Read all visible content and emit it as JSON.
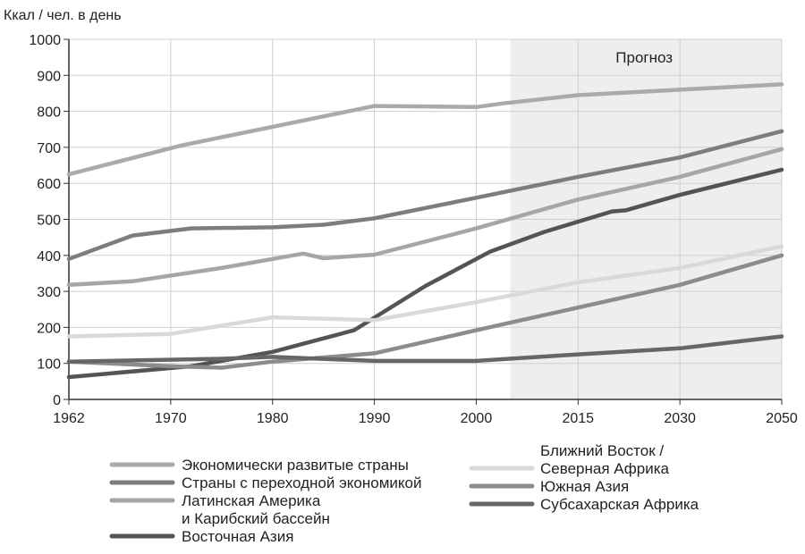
{
  "chart_data": {
    "type": "line",
    "ylabel": "Ккал / чел. в день",
    "ylim": [
      0,
      1000
    ],
    "yticks": [
      0,
      100,
      200,
      300,
      400,
      500,
      600,
      700,
      800,
      900,
      1000
    ],
    "xticks": [
      "1962",
      "1970",
      "1980",
      "1990",
      "2000",
      "2015",
      "2030",
      "2050"
    ],
    "forecast_label": "Прогноз",
    "forecast_start": 2005,
    "grid": true,
    "legend_position": "bottom",
    "series": [
      {
        "name": "Экономически развитые страны",
        "color": "#aaaaaa",
        "points": [
          [
            1962,
            625
          ],
          [
            1971,
            705
          ],
          [
            1990,
            815
          ],
          [
            2000,
            812
          ],
          [
            2004,
            822
          ],
          [
            2015,
            845
          ],
          [
            2030,
            860
          ],
          [
            2050,
            875
          ]
        ]
      },
      {
        "name": "Страны с переходной экономикой",
        "color": "#7d7d7d",
        "points": [
          [
            1962,
            390
          ],
          [
            1967,
            455
          ],
          [
            1972,
            475
          ],
          [
            1980,
            478
          ],
          [
            1985,
            485
          ],
          [
            1990,
            503
          ],
          [
            2000,
            560
          ],
          [
            2015,
            618
          ],
          [
            2030,
            672
          ],
          [
            2050,
            745
          ]
        ]
      },
      {
        "name": "Латинская Америка\nи Карибский бассейн",
        "color": "#a6a6a6",
        "points": [
          [
            1962,
            318
          ],
          [
            1967,
            328
          ],
          [
            1975,
            365
          ],
          [
            1981,
            395
          ],
          [
            1983,
            405
          ],
          [
            1985,
            392
          ],
          [
            1990,
            402
          ],
          [
            2000,
            475
          ],
          [
            2015,
            555
          ],
          [
            2030,
            618
          ],
          [
            2050,
            695
          ]
        ]
      },
      {
        "name": "Восточная Азия",
        "color": "#545454",
        "points": [
          [
            1962,
            62
          ],
          [
            1972,
            92
          ],
          [
            1980,
            132
          ],
          [
            1988,
            192
          ],
          [
            1995,
            315
          ],
          [
            2002,
            410
          ],
          [
            2010,
            465
          ],
          [
            2020,
            522
          ],
          [
            2022,
            525
          ],
          [
            2030,
            568
          ],
          [
            2050,
            638
          ]
        ]
      },
      {
        "name": "Ближний Восток /\nСеверная Африка",
        "color": "#d9d9d9",
        "points": [
          [
            1962,
            175
          ],
          [
            1970,
            182
          ],
          [
            1980,
            228
          ],
          [
            1990,
            220
          ],
          [
            2000,
            270
          ],
          [
            2015,
            325
          ],
          [
            2030,
            365
          ],
          [
            2050,
            425
          ]
        ]
      },
      {
        "name": "Южная Азия",
        "color": "#8c8c8c",
        "points": [
          [
            1962,
            105
          ],
          [
            1970,
            92
          ],
          [
            1975,
            88
          ],
          [
            1980,
            105
          ],
          [
            1990,
            128
          ],
          [
            2000,
            192
          ],
          [
            2015,
            255
          ],
          [
            2030,
            318
          ],
          [
            2050,
            400
          ]
        ]
      },
      {
        "name": "Субсахарская Африка",
        "color": "#666666",
        "points": [
          [
            1962,
            105
          ],
          [
            1975,
            113
          ],
          [
            1980,
            118
          ],
          [
            1990,
            107
          ],
          [
            2000,
            107
          ],
          [
            2015,
            125
          ],
          [
            2030,
            142
          ],
          [
            2050,
            175
          ]
        ]
      }
    ]
  }
}
